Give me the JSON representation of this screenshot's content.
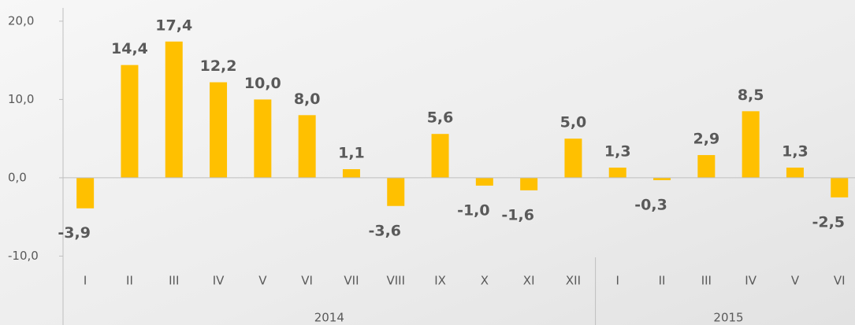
{
  "chart_data": {
    "type": "bar",
    "color": "#ffc000",
    "ylim": [
      -18.8,
      21.7
    ],
    "yticks": [
      {
        "value": -10,
        "label": "-10,0"
      },
      {
        "value": 0,
        "label": "0,0"
      },
      {
        "value": 10,
        "label": "10,0"
      },
      {
        "value": 20,
        "label": "20,0"
      }
    ],
    "groups": [
      {
        "name": "2014",
        "categories": [
          "I",
          "II",
          "III",
          "IV",
          "V",
          "VI",
          "VII",
          "VIII",
          "IX",
          "X",
          "XI",
          "XII"
        ],
        "values": [
          -3.9,
          14.4,
          17.4,
          12.2,
          10.0,
          8.0,
          1.1,
          -3.6,
          5.6,
          -1.0,
          -1.6,
          5.0
        ],
        "value_labels": [
          "-3,9",
          "14,4",
          "17,4",
          "12,2",
          "10,0",
          "8,0",
          "1,1",
          "-3,6",
          "5,6",
          "-1,0",
          "-1,6",
          "5,0"
        ]
      },
      {
        "name": "2015",
        "categories": [
          "I",
          "II",
          "III",
          "IV",
          "V",
          "VI"
        ],
        "values": [
          1.3,
          -0.3,
          2.9,
          8.5,
          1.3,
          -2.5
        ],
        "value_labels": [
          "1,3",
          "-0,3",
          "2,9",
          "8,5",
          "1,3",
          "-2,5"
        ]
      }
    ]
  }
}
